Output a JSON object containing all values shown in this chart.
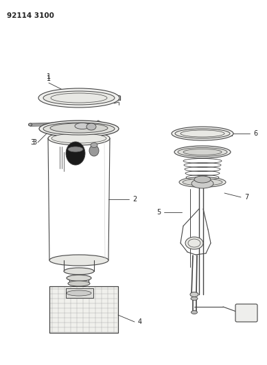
{
  "title": "92114 3100",
  "bg": "#ffffff",
  "lc": "#444444",
  "tc": "#222222",
  "figsize": [
    3.89,
    5.33
  ],
  "dpi": 100
}
